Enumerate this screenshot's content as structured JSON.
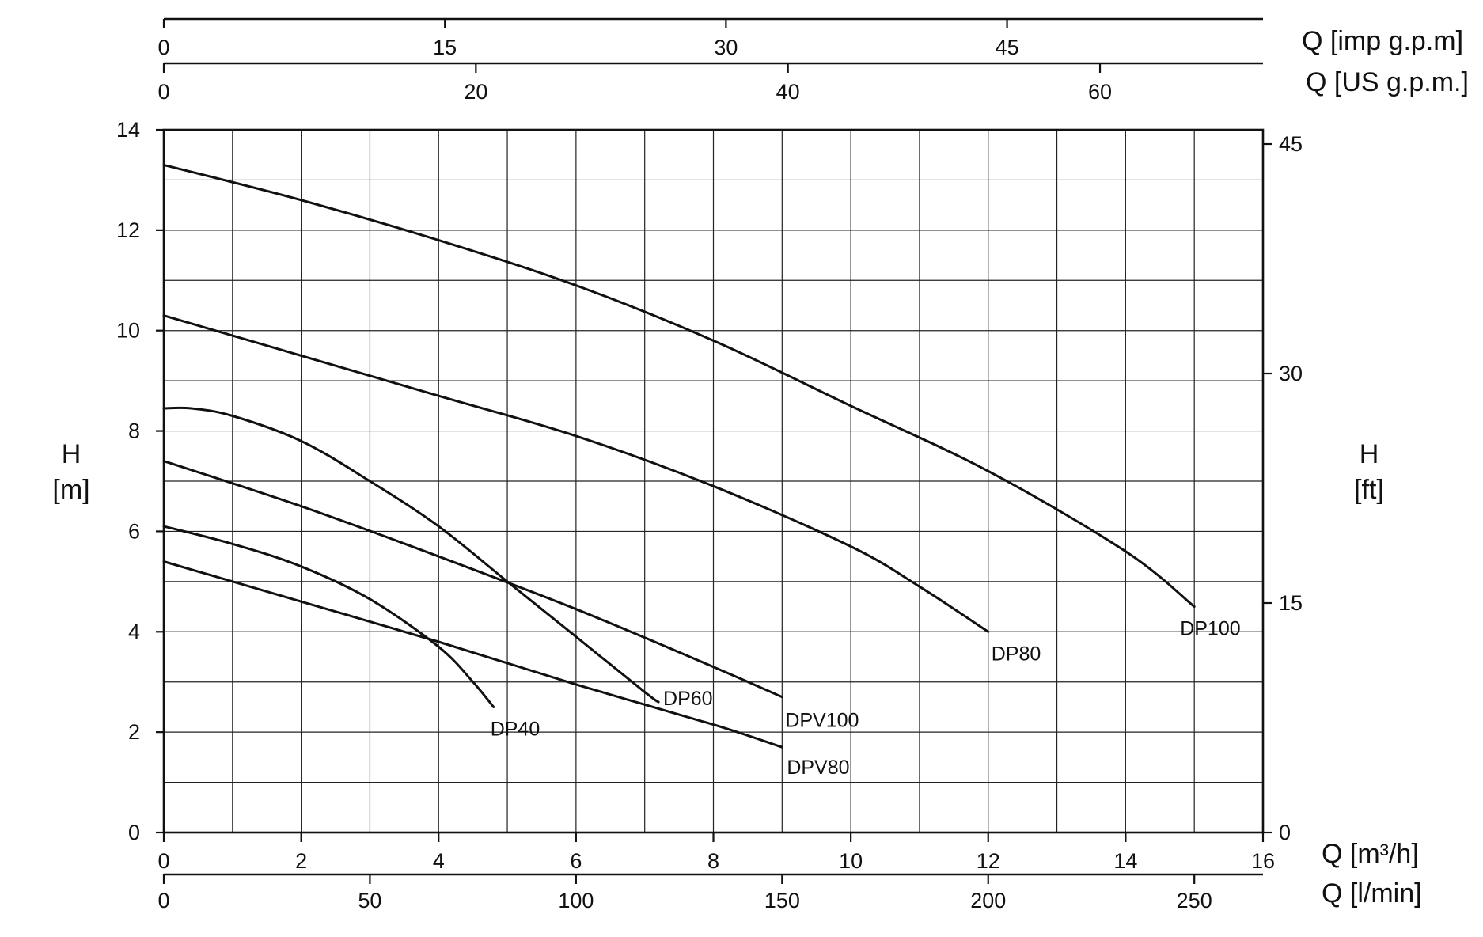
{
  "chart_data": {
    "type": "line",
    "title": "",
    "xlabel": "Q [m³/h]",
    "xlabel_lmin": "Q [l/min]",
    "xlabel_usgpm": "Q [US g.p.m.]",
    "xlabel_impgpm": "Q [imp g.p.m]",
    "ylabel_m_line1": "H",
    "ylabel_m_line2": "[m]",
    "ylabel_ft_line1": "H",
    "ylabel_ft_line2": "[ft]",
    "xlim": [
      0,
      16
    ],
    "ylim": [
      0,
      14
    ],
    "x_ticks_m3h": [
      "0",
      "2",
      "4",
      "6",
      "8",
      "10",
      "12",
      "14",
      "16"
    ],
    "x_ticks_lmin": [
      {
        "label": "0",
        "value": 0
      },
      {
        "label": "50",
        "value": 50
      },
      {
        "label": "100",
        "value": 100
      },
      {
        "label": "150",
        "value": 150
      },
      {
        "label": "200",
        "value": 200
      },
      {
        "label": "250",
        "value": 250
      }
    ],
    "x_ticks_usgpm": [
      {
        "label": "0",
        "value": 0
      },
      {
        "label": "20",
        "value": 20
      },
      {
        "label": "40",
        "value": 40
      },
      {
        "label": "60",
        "value": 60
      }
    ],
    "x_ticks_impgpm": [
      {
        "label": "0",
        "value": 0
      },
      {
        "label": "15",
        "value": 15
      },
      {
        "label": "30",
        "value": 30
      },
      {
        "label": "45",
        "value": 45
      }
    ],
    "y_ticks_m": [
      "0",
      "2",
      "4",
      "6",
      "8",
      "10",
      "12",
      "14"
    ],
    "y_ticks_ft": [
      {
        "label": "0",
        "value": 0
      },
      {
        "label": "15",
        "value": 15
      },
      {
        "label": "30",
        "value": 30
      },
      {
        "label": "45",
        "value": 45
      }
    ],
    "grid": true,
    "series": [
      {
        "name": "DP100",
        "x": [
          0,
          2,
          4,
          6,
          8,
          10,
          12,
          14,
          15
        ],
        "y": [
          13.3,
          12.6,
          11.8,
          10.9,
          9.8,
          8.5,
          7.2,
          5.6,
          4.5
        ]
      },
      {
        "name": "DP80",
        "x": [
          0,
          2,
          4,
          6,
          8,
          10,
          11,
          12
        ],
        "y": [
          10.3,
          9.5,
          8.7,
          7.9,
          6.9,
          5.7,
          4.9,
          4.0
        ]
      },
      {
        "name": "DP60",
        "x": [
          0,
          0.4,
          1,
          2,
          3,
          4,
          5,
          6,
          7,
          7.2
        ],
        "y": [
          8.45,
          8.45,
          8.3,
          7.8,
          7.0,
          6.1,
          5.0,
          3.9,
          2.8,
          2.6
        ]
      },
      {
        "name": "DPV100",
        "x": [
          0,
          2,
          4,
          6,
          8,
          9
        ],
        "y": [
          7.4,
          6.5,
          5.5,
          4.45,
          3.3,
          2.7
        ]
      },
      {
        "name": "DP40",
        "x": [
          0,
          1,
          2,
          3,
          4,
          4.5,
          4.8
        ],
        "y": [
          6.1,
          5.75,
          5.3,
          4.65,
          3.7,
          3.0,
          2.5
        ]
      },
      {
        "name": "DPV80",
        "x": [
          0,
          2,
          4,
          6,
          8,
          9
        ],
        "y": [
          5.4,
          4.6,
          3.8,
          2.95,
          2.15,
          1.7
        ]
      }
    ]
  }
}
